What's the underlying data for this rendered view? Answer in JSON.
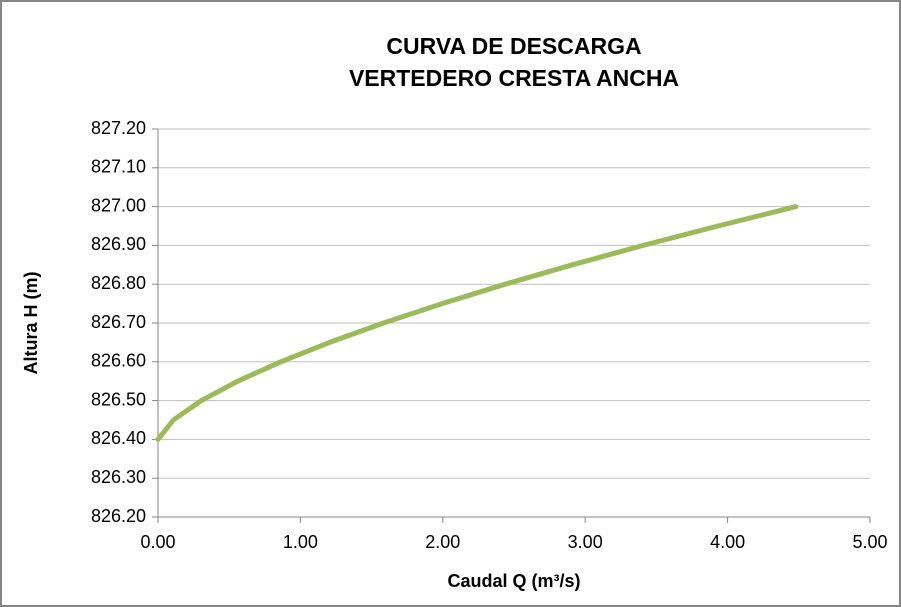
{
  "chart_data": {
    "type": "line",
    "title": [
      "CURVA DE DESCARGA",
      "VERTEDERO CRESTA ANCHA"
    ],
    "x_label": "Caudal Q (m³/s)",
    "y_label": "Altura H (m)",
    "x": [
      0,
      0.108,
      0.305,
      0.56,
      0.862,
      1.205,
      1.584,
      1.996,
      2.438,
      2.91,
      3.408,
      3.932,
      4.48
    ],
    "series": [
      {
        "name": "H",
        "color": "#9bbb59",
        "values": [
          826.4,
          826.45,
          826.5,
          826.55,
          826.6,
          826.65,
          826.7,
          826.75,
          826.8,
          826.85,
          826.9,
          826.95,
          827.0
        ]
      }
    ],
    "xlim": [
      0,
      5
    ],
    "xticks": [
      {
        "value": 0,
        "label": "0.00"
      },
      {
        "value": 1,
        "label": "1.00"
      },
      {
        "value": 2,
        "label": "2.00"
      },
      {
        "value": 3,
        "label": "3.00"
      },
      {
        "value": 4,
        "label": "4.00"
      },
      {
        "value": 5,
        "label": "5.00"
      }
    ],
    "ylim": [
      826.2,
      827.2
    ],
    "yticks": [
      {
        "value": 826.2,
        "label": "826.20"
      },
      {
        "value": 826.3,
        "label": "826.30"
      },
      {
        "value": 826.4,
        "label": "826.40"
      },
      {
        "value": 826.5,
        "label": "826.50"
      },
      {
        "value": 826.6,
        "label": "826.60"
      },
      {
        "value": 826.7,
        "label": "826.70"
      },
      {
        "value": 826.8,
        "label": "826.80"
      },
      {
        "value": 826.9,
        "label": "826.90"
      },
      {
        "value": 827.0,
        "label": "827.00"
      },
      {
        "value": 827.1,
        "label": "827.10"
      },
      {
        "value": 827.2,
        "label": "827.20"
      }
    ],
    "grid": true
  }
}
